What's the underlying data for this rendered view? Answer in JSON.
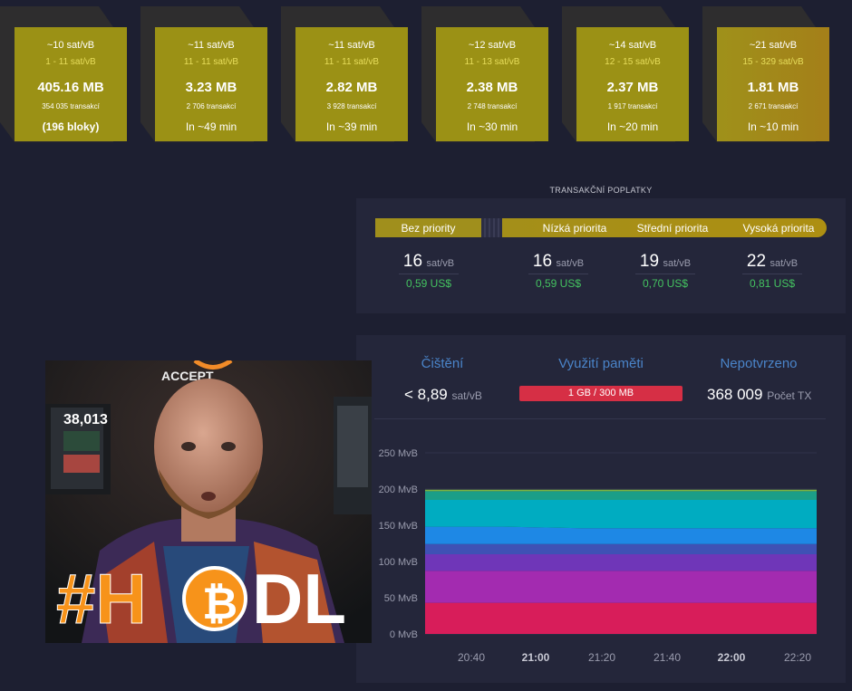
{
  "blocks": [
    {
      "fee": "~10 sat/vB",
      "range": "1 - 11 sat/vB",
      "size": "405.16 MB",
      "tx": "354 035 transakcí",
      "time": "(196 bloky)"
    },
    {
      "fee": "~11 sat/vB",
      "range": "11 - 11 sat/vB",
      "size": "3.23 MB",
      "tx": "2 706 transakcí",
      "time": "In ~49 min"
    },
    {
      "fee": "~11 sat/vB",
      "range": "11 - 11 sat/vB",
      "size": "2.82 MB",
      "tx": "3 928 transakcí",
      "time": "In ~39 min"
    },
    {
      "fee": "~12 sat/vB",
      "range": "11 - 13 sat/vB",
      "size": "2.38 MB",
      "tx": "2 748 transakcí",
      "time": "In ~30 min"
    },
    {
      "fee": "~14 sat/vB",
      "range": "12 - 15 sat/vB",
      "size": "2.37 MB",
      "tx": "1 917 transakcí",
      "time": "In ~20 min"
    },
    {
      "fee": "~21 sat/vB",
      "range": "15 - 329 sat/vB",
      "size": "1.81 MB",
      "tx": "2 671 transakcí",
      "time": "In ~10 min"
    }
  ],
  "fees": {
    "title": "TRANSAKČNÍ POPLATKY",
    "priorities": [
      "Bez priority",
      "Nízká priorita",
      "Střední priorita",
      "Vysoká priorita"
    ],
    "unit": "sat/vB",
    "values": [
      {
        "num": "16",
        "usd": "0,59 US$"
      },
      {
        "num": "16",
        "usd": "0,59 US$"
      },
      {
        "num": "19",
        "usd": "0,70 US$"
      },
      {
        "num": "22",
        "usd": "0,81 US$"
      }
    ]
  },
  "mempool": {
    "purge_title": "Čištění",
    "purge_value": "< 8,89",
    "purge_unit": "sat/vB",
    "memory_title": "Využití paměti",
    "memory_value": "1 GB / 300 MB",
    "unconfirmed_title": "Nepotvrzeno",
    "unconfirmed_value": "368 009",
    "unconfirmed_unit": "Počet TX"
  },
  "thumbnail": {
    "hashtag": "#H",
    "tail": "DL",
    "screen_value": "38,013",
    "sign_text": "ACCEPT"
  },
  "colors": {
    "accent": "#9b9115",
    "green": "#44c360",
    "memory_bar": "#d62f45",
    "title_blue": "#4a84c9"
  },
  "chart_data": {
    "type": "area",
    "x": [
      "20:40",
      "21:00",
      "21:20",
      "21:40",
      "22:00",
      "22:20"
    ],
    "x_bold": [
      "21:00",
      "22:00"
    ],
    "y_ticks": [
      "0 MvB",
      "50 MvB",
      "100 MvB",
      "150 MvB",
      "200 MvB",
      "250 MvB"
    ],
    "ylim": [
      0,
      250
    ],
    "series": [
      {
        "color": "#d81d5a",
        "values": [
          43,
          43,
          43,
          43,
          43,
          43
        ]
      },
      {
        "color": "#a32bb0",
        "values": [
          44,
          44,
          44,
          44,
          44,
          44
        ]
      },
      {
        "color": "#6f36b8",
        "values": [
          23,
          23,
          23,
          23,
          23,
          23
        ]
      },
      {
        "color": "#3f51b5",
        "values": [
          14,
          14,
          14,
          14,
          14,
          14
        ]
      },
      {
        "color": "#1e88e5",
        "values": [
          24,
          24,
          22,
          22,
          22,
          22
        ]
      },
      {
        "color": "#00acc1",
        "values": [
          37,
          37,
          39,
          39,
          39,
          39
        ]
      },
      {
        "color": "#1b9e88",
        "values": [
          12,
          12,
          12,
          12,
          12,
          12
        ]
      },
      {
        "color": "#7cb342",
        "values": [
          2,
          2,
          2,
          2,
          2,
          2
        ]
      }
    ]
  }
}
